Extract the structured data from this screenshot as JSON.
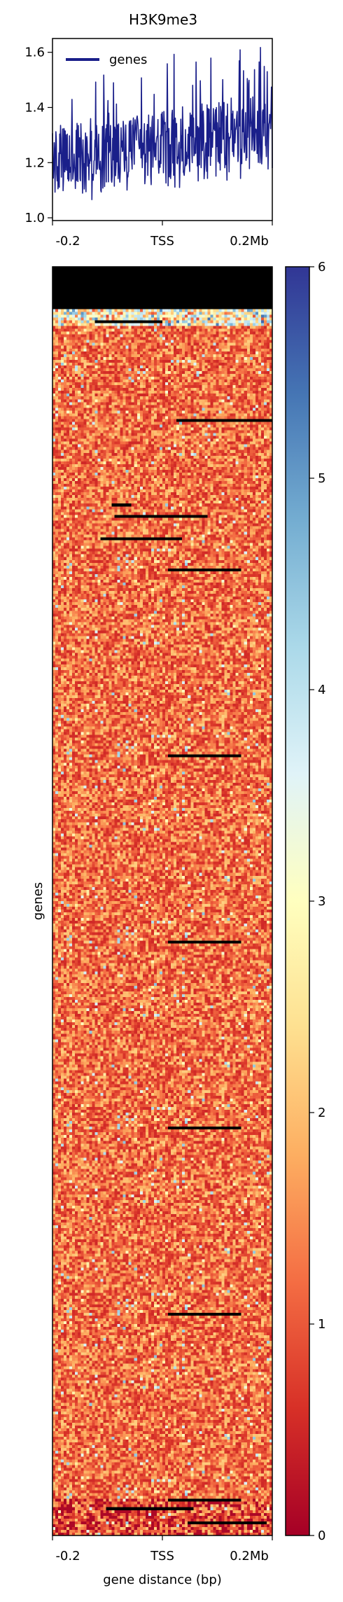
{
  "chart_data": [
    {
      "type": "line",
      "title": "H3K9me3",
      "xlabel": "",
      "ylabel": "",
      "x_tick_labels": [
        "-0.2",
        "TSS",
        "0.2Mb"
      ],
      "y_ticks": [
        1.0,
        1.2,
        1.4,
        1.6
      ],
      "y_tick_labels": [
        "1.0",
        "1.2",
        "1.4",
        "1.6"
      ],
      "ylim": [
        0.99,
        1.65
      ],
      "legend": {
        "position": "top-left"
      },
      "series": [
        {
          "name": "genes",
          "color": "#1a1f8a",
          "description": "noisy profile rising left to right",
          "band_start": [
            1.08,
            1.32
          ],
          "band_end": [
            1.2,
            1.45
          ],
          "peak_max": 1.62
        }
      ]
    },
    {
      "type": "heatmap",
      "ylabel": "genes",
      "xlabel": "gene distance (bp)",
      "x_tick_labels": [
        "-0.2",
        "TSS",
        "0.2Mb"
      ],
      "colormap": "RdYlBu",
      "value_range": [
        0,
        6
      ],
      "typical_value_range": [
        0.5,
        2.2
      ],
      "missing_color": "#000000",
      "rows_description": "dense matrix of signal per gene, rows sorted; top block of missing data (black), sparse black gaps throughout"
    }
  ],
  "colorbar": {
    "ticks": [
      0,
      1,
      2,
      3,
      4,
      5,
      6
    ],
    "tick_labels": [
      "0",
      "1",
      "2",
      "3",
      "4",
      "5",
      "6"
    ],
    "colors": [
      "#a50026",
      "#d73027",
      "#f46d43",
      "#fdae61",
      "#fee090",
      "#ffffbf",
      "#e0f3f8",
      "#abd9e9",
      "#74add1",
      "#4575b4",
      "#313695"
    ]
  }
}
